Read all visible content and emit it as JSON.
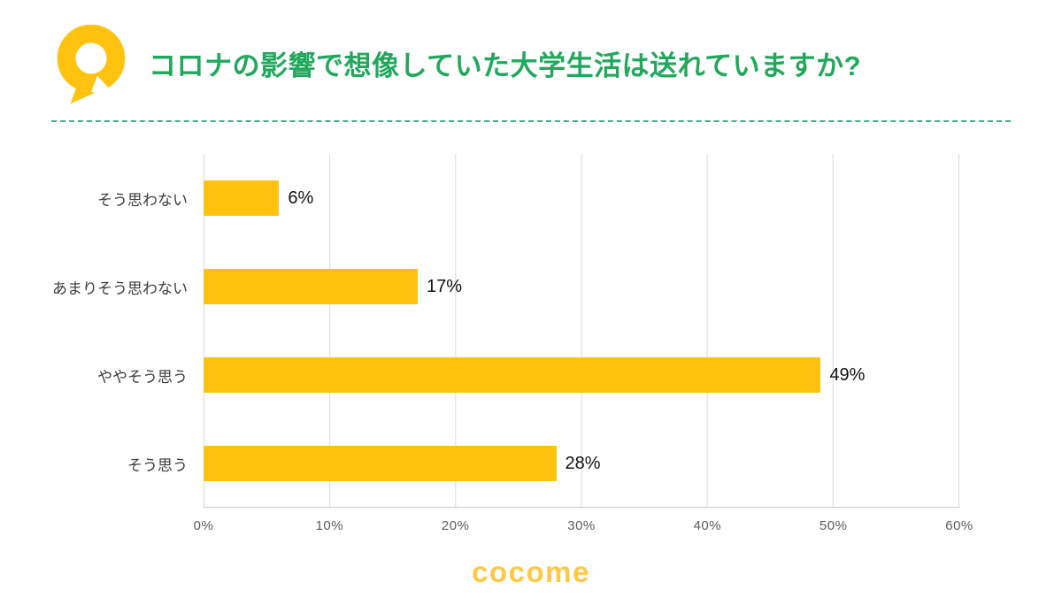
{
  "header": {
    "title": "コロナの影響で想像していた大学生活は送れていますか?",
    "icon": "question-speech-bubble-icon"
  },
  "chart_data": {
    "type": "bar",
    "orientation": "horizontal",
    "title": "コロナの影響で想像していた大学生活は送れていますか?",
    "categories": [
      "そう思わない",
      "あまりそう思わない",
      "ややそう思う",
      "そう思う"
    ],
    "values": [
      6,
      17,
      49,
      28
    ],
    "value_labels": [
      "6%",
      "17%",
      "49%",
      "28%"
    ],
    "xlim": [
      0,
      60
    ],
    "x_ticks": [
      "0%",
      "10%",
      "20%",
      "30%",
      "40%",
      "50%",
      "60%"
    ],
    "grid": true,
    "legend_position": "none",
    "xlabel": "",
    "ylabel": ""
  },
  "colors": {
    "title": "#21A85C",
    "bar": "#FFC20E",
    "logo": "#FFC845",
    "divider": "#45B08C"
  },
  "footer": {
    "logo_text": "cocome"
  }
}
